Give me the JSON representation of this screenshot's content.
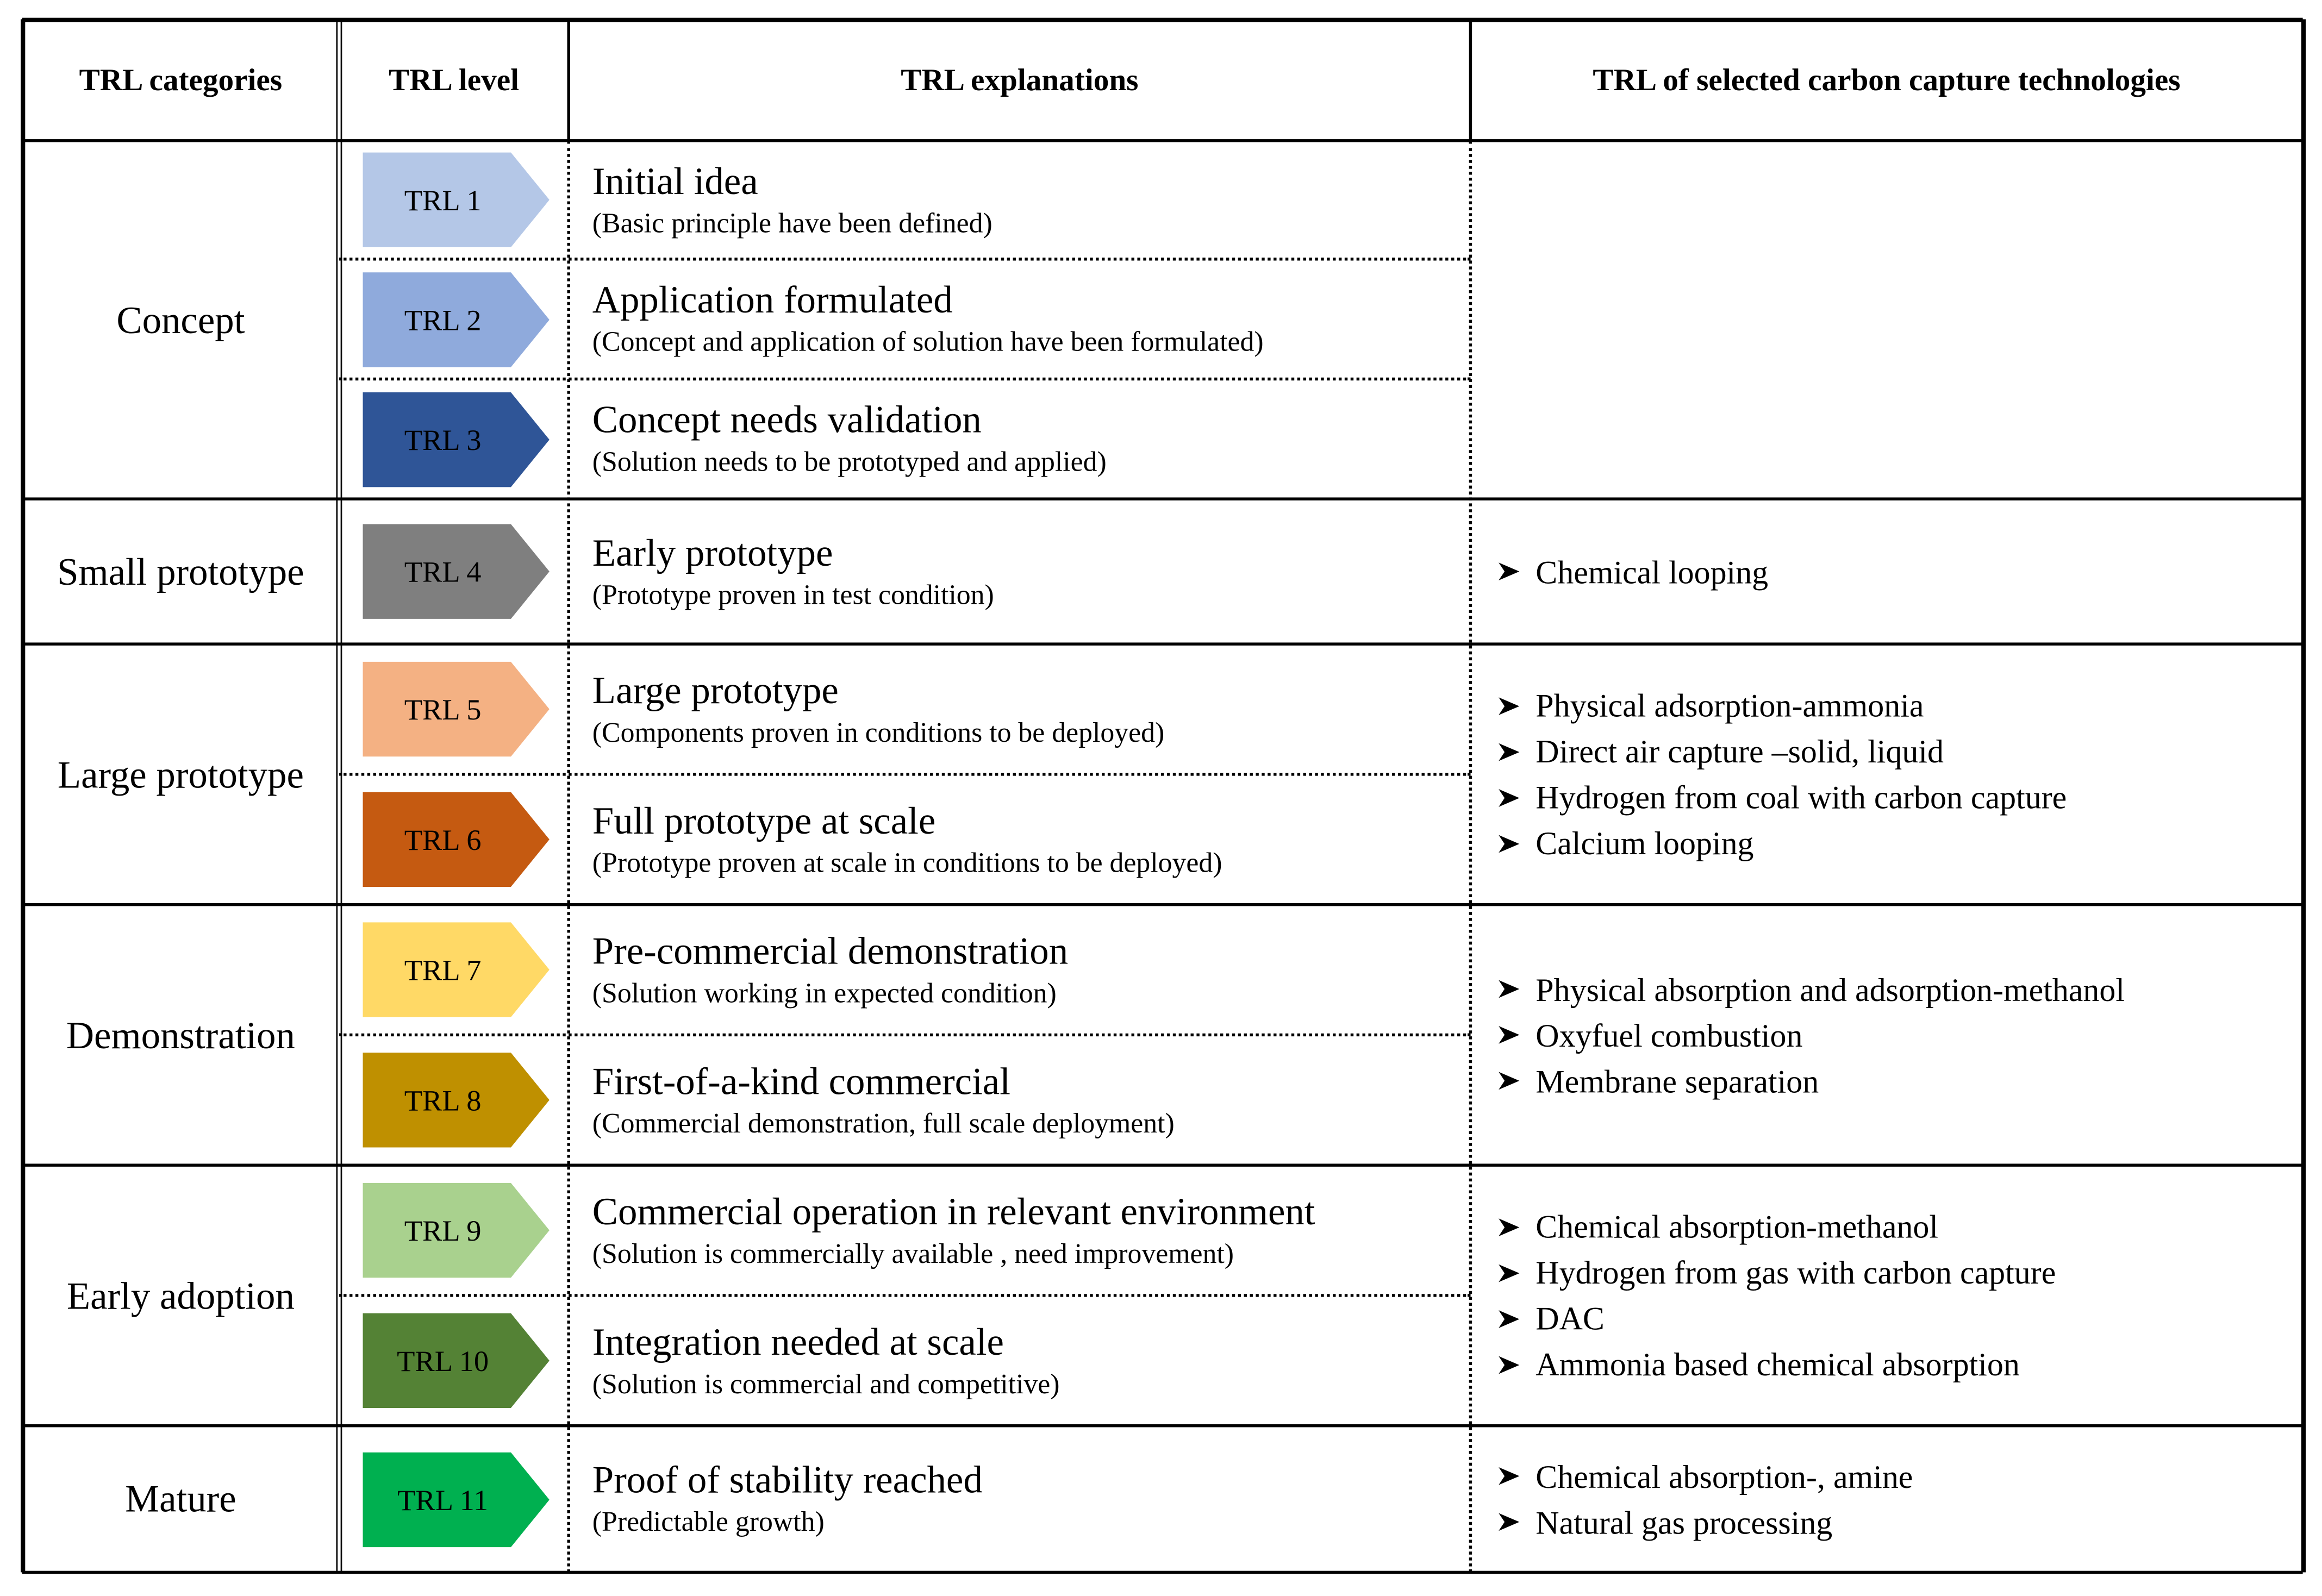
{
  "header": [
    "TRL categories",
    "TRL level",
    "TRL explanations",
    "TRL of selected carbon capture technologies"
  ],
  "groups": [
    {
      "category": "Concept",
      "levels": [
        {
          "label": "TRL 1",
          "color": "#b4c7e7",
          "title": "Initial idea",
          "subtitle": "(Basic principle have been defined)"
        },
        {
          "label": "TRL 2",
          "color": "#8faadc",
          "title": "Application formulated",
          "subtitle": "(Concept and application of solution have been formulated)"
        },
        {
          "label": "TRL 3",
          "color": "#2f5597",
          "title": "Concept needs validation",
          "subtitle": "(Solution needs to be prototyped and applied)"
        }
      ],
      "technologies": []
    },
    {
      "category": "Small prototype",
      "levels": [
        {
          "label": "TRL 4",
          "color": "#7f7f7f",
          "title": "Early prototype",
          "subtitle": "(Prototype proven in test condition)"
        }
      ],
      "technologies": [
        "Chemical looping"
      ]
    },
    {
      "category": "Large prototype",
      "levels": [
        {
          "label": "TRL 5",
          "color": "#f4b183",
          "title": "Large prototype",
          "subtitle": "(Components proven in conditions to be deployed)"
        },
        {
          "label": "TRL 6",
          "color": "#c55a11",
          "title": "Full prototype at scale",
          "subtitle": "(Prototype proven at scale in conditions to be deployed)"
        }
      ],
      "technologies": [
        "Physical adsorption-ammonia",
        "Direct air capture –solid, liquid",
        "Hydrogen from coal with carbon capture",
        "Calcium looping"
      ]
    },
    {
      "category": "Demonstration",
      "levels": [
        {
          "label": "TRL 7",
          "color": "#ffd966",
          "title": "Pre-commercial demonstration",
          "subtitle": "(Solution working in expected condition)"
        },
        {
          "label": "TRL 8",
          "color": "#bf9000",
          "title": "First-of-a-kind commercial",
          "subtitle": "(Commercial demonstration, full scale deployment)"
        }
      ],
      "technologies": [
        "Physical absorption and adsorption-methanol",
        "Oxyfuel combustion",
        "Membrane separation"
      ]
    },
    {
      "category": "Early adoption",
      "levels": [
        {
          "label": "TRL 9",
          "color": "#a9d18e",
          "title": "Commercial operation in relevant environment",
          "subtitle": "(Solution is commercially available , need improvement)"
        },
        {
          "label": "TRL 10",
          "color": "#548235",
          "title": "Integration needed at scale",
          "subtitle": "(Solution is commercial and competitive)"
        }
      ],
      "technologies": [
        "Chemical absorption-methanol",
        "Hydrogen from gas with carbon capture",
        "DAC",
        "Ammonia based chemical absorption"
      ]
    },
    {
      "category": "Mature",
      "levels": [
        {
          "label": "TRL 11",
          "color": "#00b050",
          "title": "Proof of stability reached",
          "subtitle": "(Predictable growth)"
        }
      ],
      "technologies": [
        "Chemical absorption-, amine",
        "Natural gas processing"
      ]
    }
  ]
}
